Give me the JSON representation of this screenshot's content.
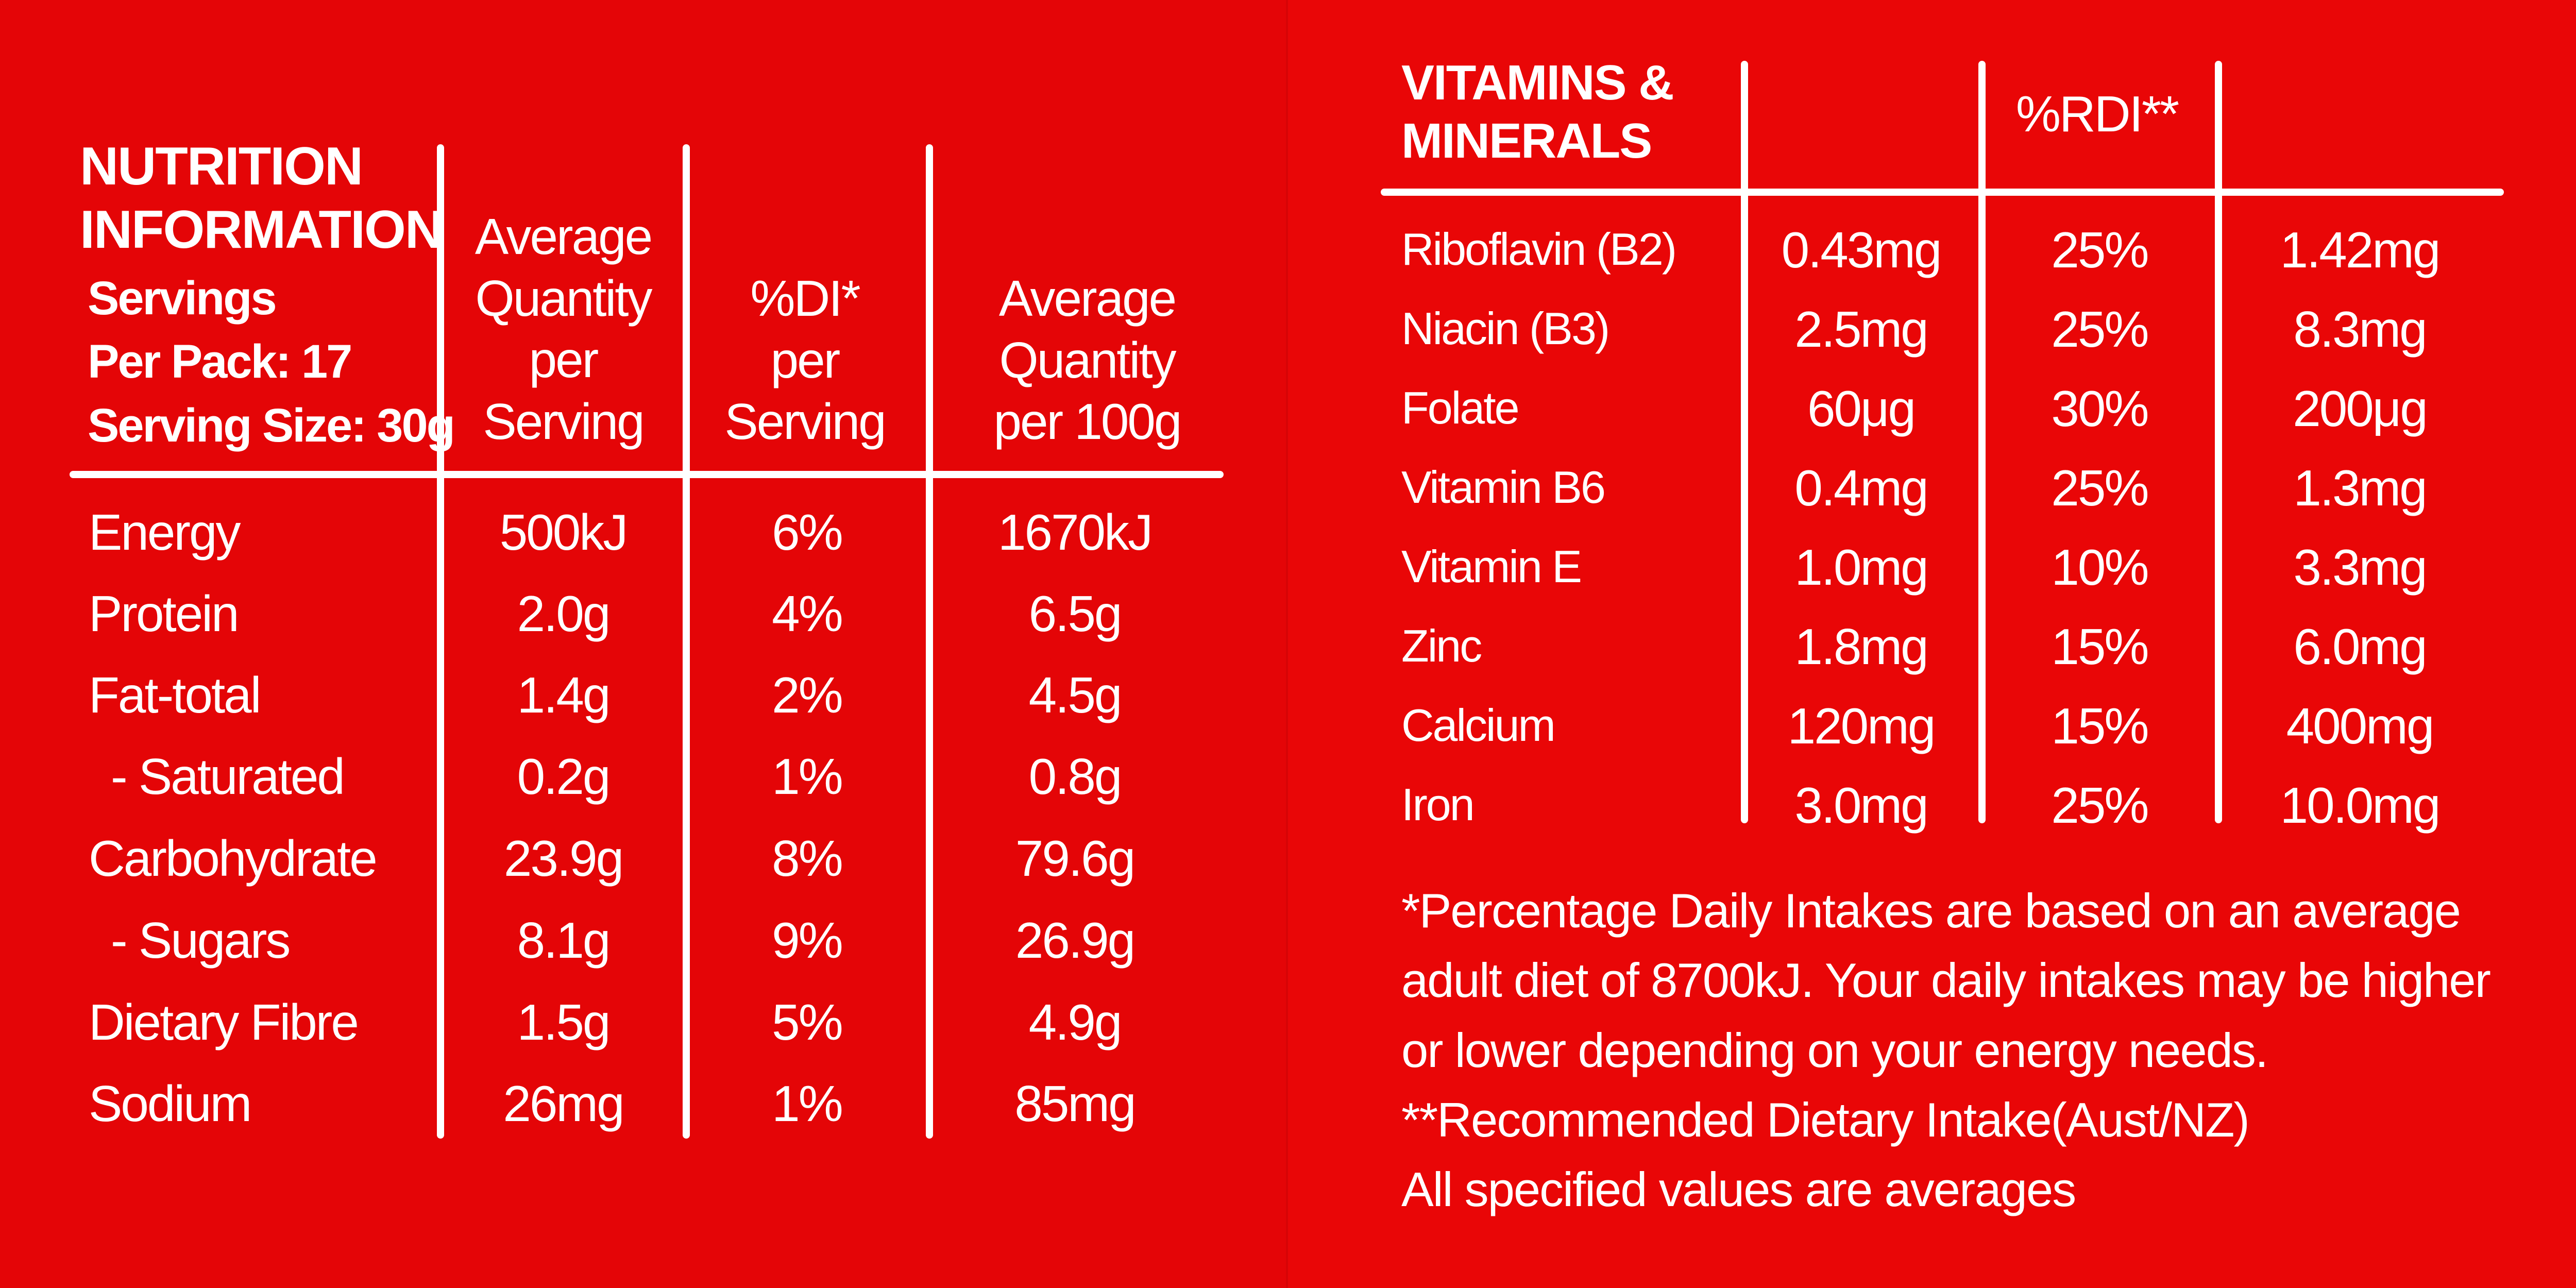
{
  "colors": {
    "background": "#e40507",
    "text": "#ffffff"
  },
  "nutrition": {
    "title_line1": "NUTRITION",
    "title_line2": "INFORMATION",
    "servings_line1": "Servings",
    "servings_line2": "Per Pack: 17",
    "serving_size": "Serving Size: 30g",
    "col_avg_serving": [
      "Average",
      "Quantity",
      "per",
      "Serving"
    ],
    "col_di": [
      "%DI*",
      "per",
      "Serving"
    ],
    "col_avg_100g": [
      "Average",
      "Quantity",
      "per 100g"
    ],
    "rows": [
      {
        "name": "Energy",
        "serving": "500kJ",
        "di": "6%",
        "per100": "1670kJ"
      },
      {
        "name": "Protein",
        "serving": "2.0g",
        "di": "4%",
        "per100": "6.5g"
      },
      {
        "name": "Fat-total",
        "serving": "1.4g",
        "di": "2%",
        "per100": "4.5g"
      },
      {
        "name": "- Saturated",
        "serving": "0.2g",
        "di": "1%",
        "per100": "0.8g"
      },
      {
        "name": "Carbohydrate",
        "serving": "23.9g",
        "di": "8%",
        "per100": "79.6g"
      },
      {
        "name": "- Sugars",
        "serving": "8.1g",
        "di": "9%",
        "per100": "26.9g"
      },
      {
        "name": "Dietary Fibre",
        "serving": "1.5g",
        "di": "5%",
        "per100": "4.9g"
      },
      {
        "name": "Sodium",
        "serving": "26mg",
        "di": "1%",
        "per100": "85mg"
      }
    ]
  },
  "vitamins": {
    "title_line1": "VITAMINS &",
    "title_line2": "MINERALS",
    "col_rdi": "%RDI**",
    "rows": [
      {
        "name": "Riboflavin (B2)",
        "serving": "0.43mg",
        "rdi": "25%",
        "per100": "1.42mg"
      },
      {
        "name": "Niacin (B3)",
        "serving": "2.5mg",
        "rdi": "25%",
        "per100": "8.3mg"
      },
      {
        "name": "Folate",
        "serving": "60μg",
        "rdi": "30%",
        "per100": "200μg"
      },
      {
        "name": "Vitamin B6",
        "serving": "0.4mg",
        "rdi": "25%",
        "per100": "1.3mg"
      },
      {
        "name": "Vitamin E",
        "serving": "1.0mg",
        "rdi": "10%",
        "per100": "3.3mg"
      },
      {
        "name": "Zinc",
        "serving": "1.8mg",
        "rdi": "15%",
        "per100": "6.0mg"
      },
      {
        "name": "Calcium",
        "serving": "120mg",
        "rdi": "15%",
        "per100": "400mg"
      },
      {
        "name": "Iron",
        "serving": "3.0mg",
        "rdi": "25%",
        "per100": "10.0mg"
      }
    ]
  },
  "footnotes": {
    "line1": "*Percentage Daily Intakes are based on an average",
    "line2": "adult diet of 8700kJ. Your daily intakes may be higher",
    "line3": "or lower depending on your energy needs.",
    "line4": "**Recommended Dietary Intake(Aust/NZ)",
    "line5": "All specified values are averages"
  }
}
